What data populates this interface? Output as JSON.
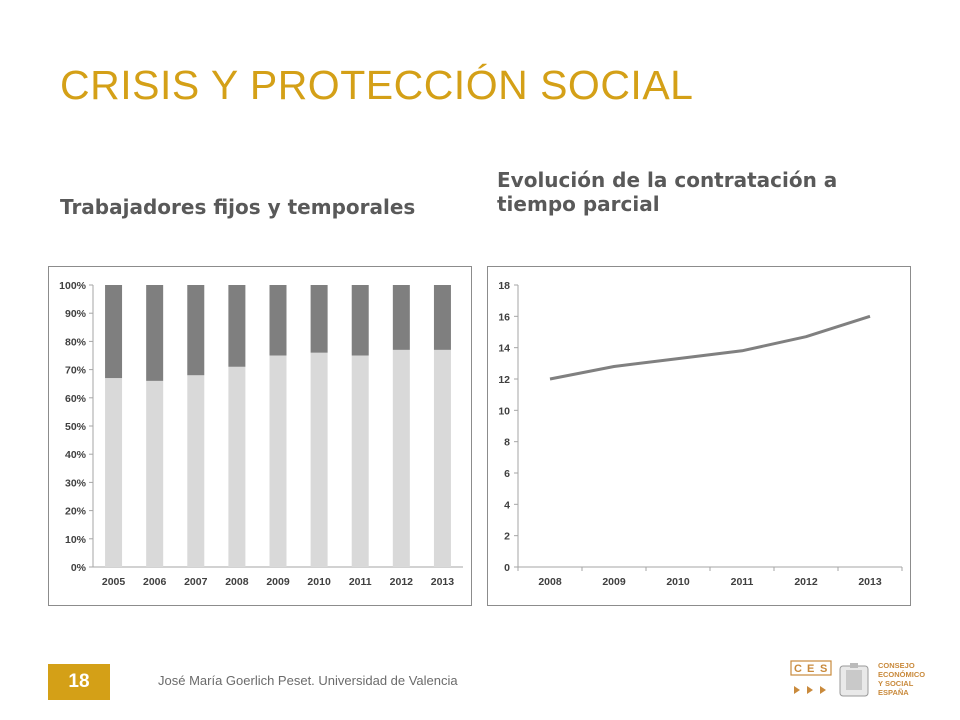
{
  "slide": {
    "title": "CRISIS Y PROTECCIÓN SOCIAL",
    "subtitle_left": "Trabajadores fijos y temporales",
    "subtitle_right": "Evolución de la contratación a tiempo parcial",
    "page_number": "18",
    "footer": "José María Goerlich Peset. Universidad de Valencia",
    "logo": {
      "letters": [
        "C",
        "E",
        "S"
      ],
      "lines": [
        "CONSEJO",
        "ECONÓMICO",
        "Y SOCIAL",
        "ESPAÑA"
      ]
    }
  },
  "colors": {
    "accent": "#d4a017",
    "dark_bar": "#7f7f7f",
    "light_bar": "#d9d9d9",
    "line": "#808080",
    "logo": "#c98a3c"
  },
  "chart_data": [
    {
      "type": "bar",
      "stacked": true,
      "categories": [
        "2005",
        "2006",
        "2007",
        "2008",
        "2009",
        "2010",
        "2011",
        "2012",
        "2013"
      ],
      "series": [
        {
          "values": [
            67,
            66,
            68,
            71,
            75,
            76,
            75,
            77,
            77
          ]
        },
        {
          "values": [
            33,
            34,
            32,
            29,
            25,
            24,
            25,
            23,
            23
          ]
        }
      ],
      "ylim": [
        0,
        100
      ],
      "yticks": [
        "0%",
        "10%",
        "20%",
        "30%",
        "40%",
        "50%",
        "60%",
        "70%",
        "80%",
        "90%",
        "100%"
      ],
      "grid": false,
      "legend": "none"
    },
    {
      "type": "line",
      "x": [
        "2008",
        "2009",
        "2010",
        "2011",
        "2012",
        "2013"
      ],
      "series": [
        {
          "values": [
            12,
            12.8,
            13.3,
            13.8,
            14.7,
            16
          ]
        }
      ],
      "ylim": [
        0,
        18
      ],
      "yticks": [
        "0",
        "2",
        "4",
        "6",
        "8",
        "10",
        "12",
        "14",
        "16",
        "18"
      ],
      "grid": false,
      "legend": "none"
    }
  ]
}
